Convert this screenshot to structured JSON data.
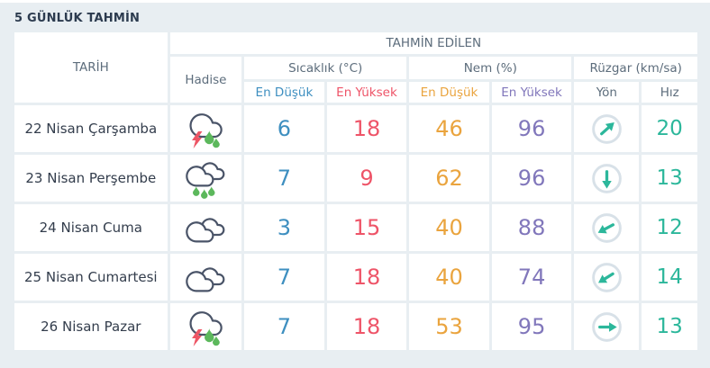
{
  "title": "5 GÜNLÜK TAHMİN",
  "colors": {
    "temp_low": "#3e8fc0",
    "temp_high": "#ee5468",
    "hum_low": "#eaa43e",
    "hum_high": "#8177bb",
    "wind": "#2cb79b",
    "title_text": "#2c3b4f",
    "header_text": "#5d6d7c",
    "date_text": "#333d4c",
    "background": "#e8eef2",
    "cell": "#ffffff",
    "cloud_outline": "#4a5468",
    "bolt": "#ed5565",
    "drop": "#5cb85c",
    "circle": "#d8e1e8"
  },
  "header": {
    "predicted": "TAHMİN EDİLEN",
    "date": "TARİH",
    "condition": "Hadise",
    "temperature": "Sıcaklık (°C)",
    "humidity": "Nem (%)",
    "wind": "Rüzgar (km/sa)",
    "temp_low": "En Düşük",
    "temp_high": "En Yüksek",
    "hum_low": "En Düşük",
    "hum_high": "En Yüksek",
    "wind_dir": "Yön",
    "wind_speed": "Hız"
  },
  "rows": [
    {
      "date": "22 Nisan Çarşamba",
      "condition_icon": "thunderstorm-rain-icon",
      "temp_low": "6",
      "temp_high": "18",
      "hum_low": "46",
      "hum_high": "96",
      "wind_dir_deg": 48,
      "wind_speed": "20"
    },
    {
      "date": "23 Nisan Perşembe",
      "condition_icon": "rainy-icon",
      "temp_low": "7",
      "temp_high": "9",
      "hum_low": "62",
      "hum_high": "96",
      "wind_dir_deg": 180,
      "wind_speed": "13"
    },
    {
      "date": "24 Nisan Cuma",
      "condition_icon": "cloudy-icon",
      "temp_low": "3",
      "temp_high": "15",
      "hum_low": "40",
      "hum_high": "88",
      "wind_dir_deg": 242,
      "wind_speed": "12"
    },
    {
      "date": "25 Nisan Cumartesi",
      "condition_icon": "cloudy-icon",
      "temp_low": "7",
      "temp_high": "18",
      "hum_low": "40",
      "hum_high": "74",
      "wind_dir_deg": 238,
      "wind_speed": "14"
    },
    {
      "date": "26 Nisan Pazar",
      "condition_icon": "thunderstorm-rain-icon",
      "temp_low": "7",
      "temp_high": "18",
      "hum_low": "53",
      "hum_high": "95",
      "wind_dir_deg": 90,
      "wind_speed": "13"
    }
  ]
}
